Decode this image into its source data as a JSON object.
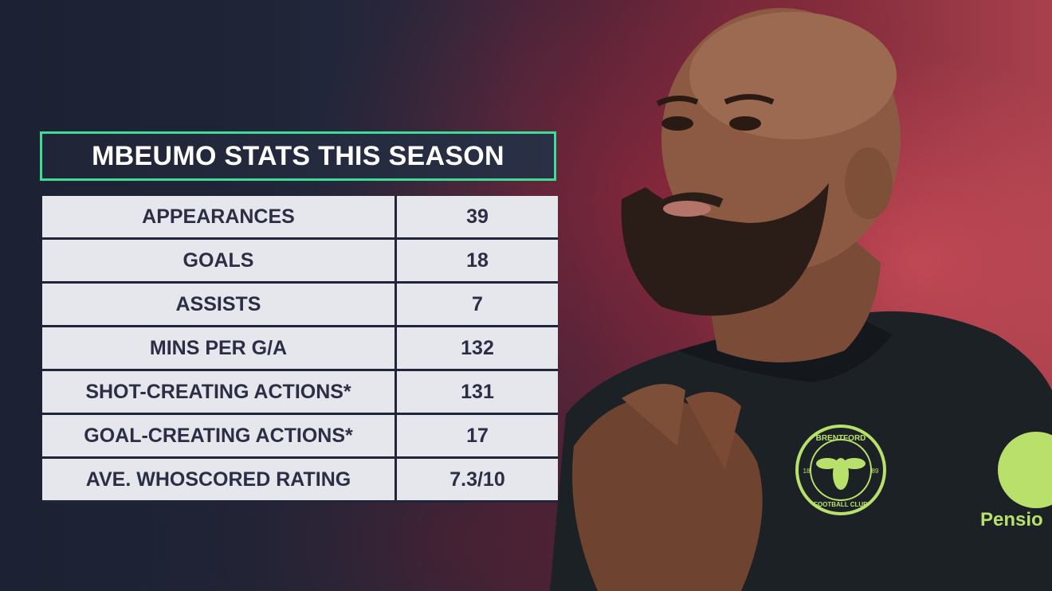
{
  "title": "MBEUMO STATS THIS SEASON",
  "stats": [
    {
      "label": "APPEARANCES",
      "value": "39"
    },
    {
      "label": "GOALS",
      "value": "18"
    },
    {
      "label": "ASSISTS",
      "value": "7"
    },
    {
      "label": "MINS PER G/A",
      "value": "132"
    },
    {
      "label": "SHOT-CREATING ACTIONS*",
      "value": "131"
    },
    {
      "label": "GOAL-CREATING ACTIONS*",
      "value": "17"
    },
    {
      "label": "AVE. WHOSCORED RATING",
      "value": "7.3/10"
    }
  ],
  "badge": {
    "top_text": "BRENTFORD",
    "bottom_text": "FOOTBALL CLUB",
    "year_left": "18",
    "year_right": "89"
  },
  "sponsor": {
    "text": "Pensio"
  },
  "colors": {
    "accent": "#3ddc97",
    "panel_dark": "#1f2536",
    "cell_bg": "#e6e7ec",
    "cell_text": "#2a2f45",
    "badge_green": "#b8e06a"
  }
}
